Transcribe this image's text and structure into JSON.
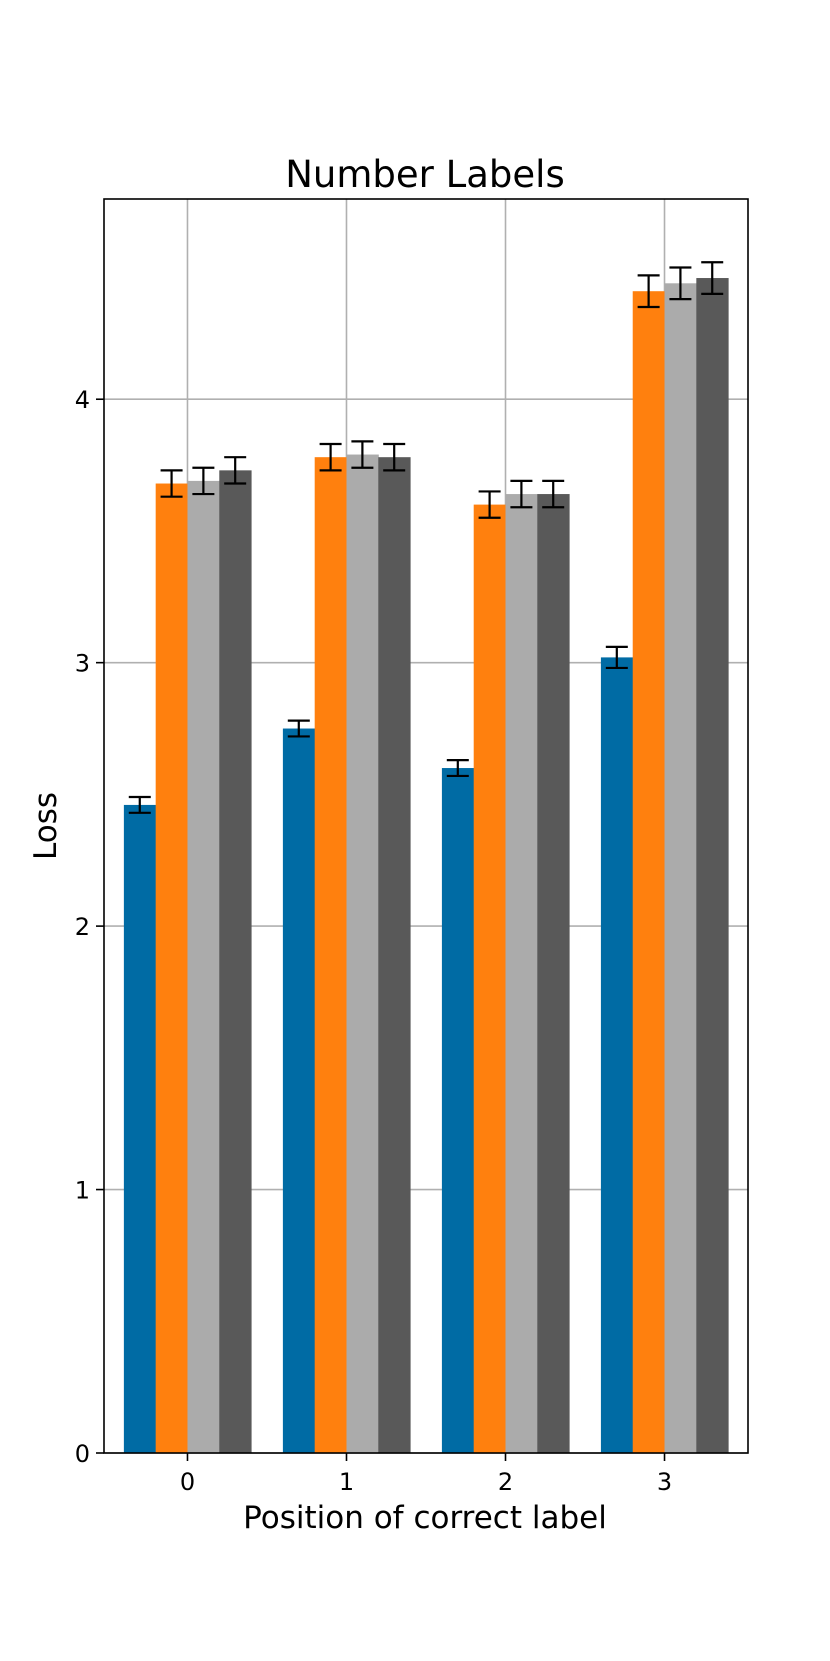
{
  "chart_data": {
    "type": "bar",
    "title": "Number Labels",
    "xlabel": "Position of correct label",
    "ylabel": "Loss",
    "categories": [
      "0",
      "1",
      "2",
      "3"
    ],
    "yticks": [
      "0",
      "1",
      "2",
      "3",
      "4"
    ],
    "ylim": [
      0,
      4.76
    ],
    "grid": true,
    "legend": "none",
    "series": [
      {
        "color": "#006ba4",
        "values": [
          2.46,
          2.75,
          2.6,
          3.02
        ],
        "errors": [
          0.03,
          0.03,
          0.03,
          0.04
        ]
      },
      {
        "color": "#ff800e",
        "values": [
          3.68,
          3.78,
          3.6,
          4.41
        ],
        "errors": [
          0.05,
          0.05,
          0.05,
          0.06
        ]
      },
      {
        "color": "#ababab",
        "values": [
          3.69,
          3.79,
          3.64,
          4.44
        ],
        "errors": [
          0.05,
          0.05,
          0.05,
          0.06
        ]
      },
      {
        "color": "#595959",
        "values": [
          3.73,
          3.78,
          3.64,
          4.46
        ],
        "errors": [
          0.05,
          0.05,
          0.05,
          0.06
        ]
      }
    ]
  }
}
